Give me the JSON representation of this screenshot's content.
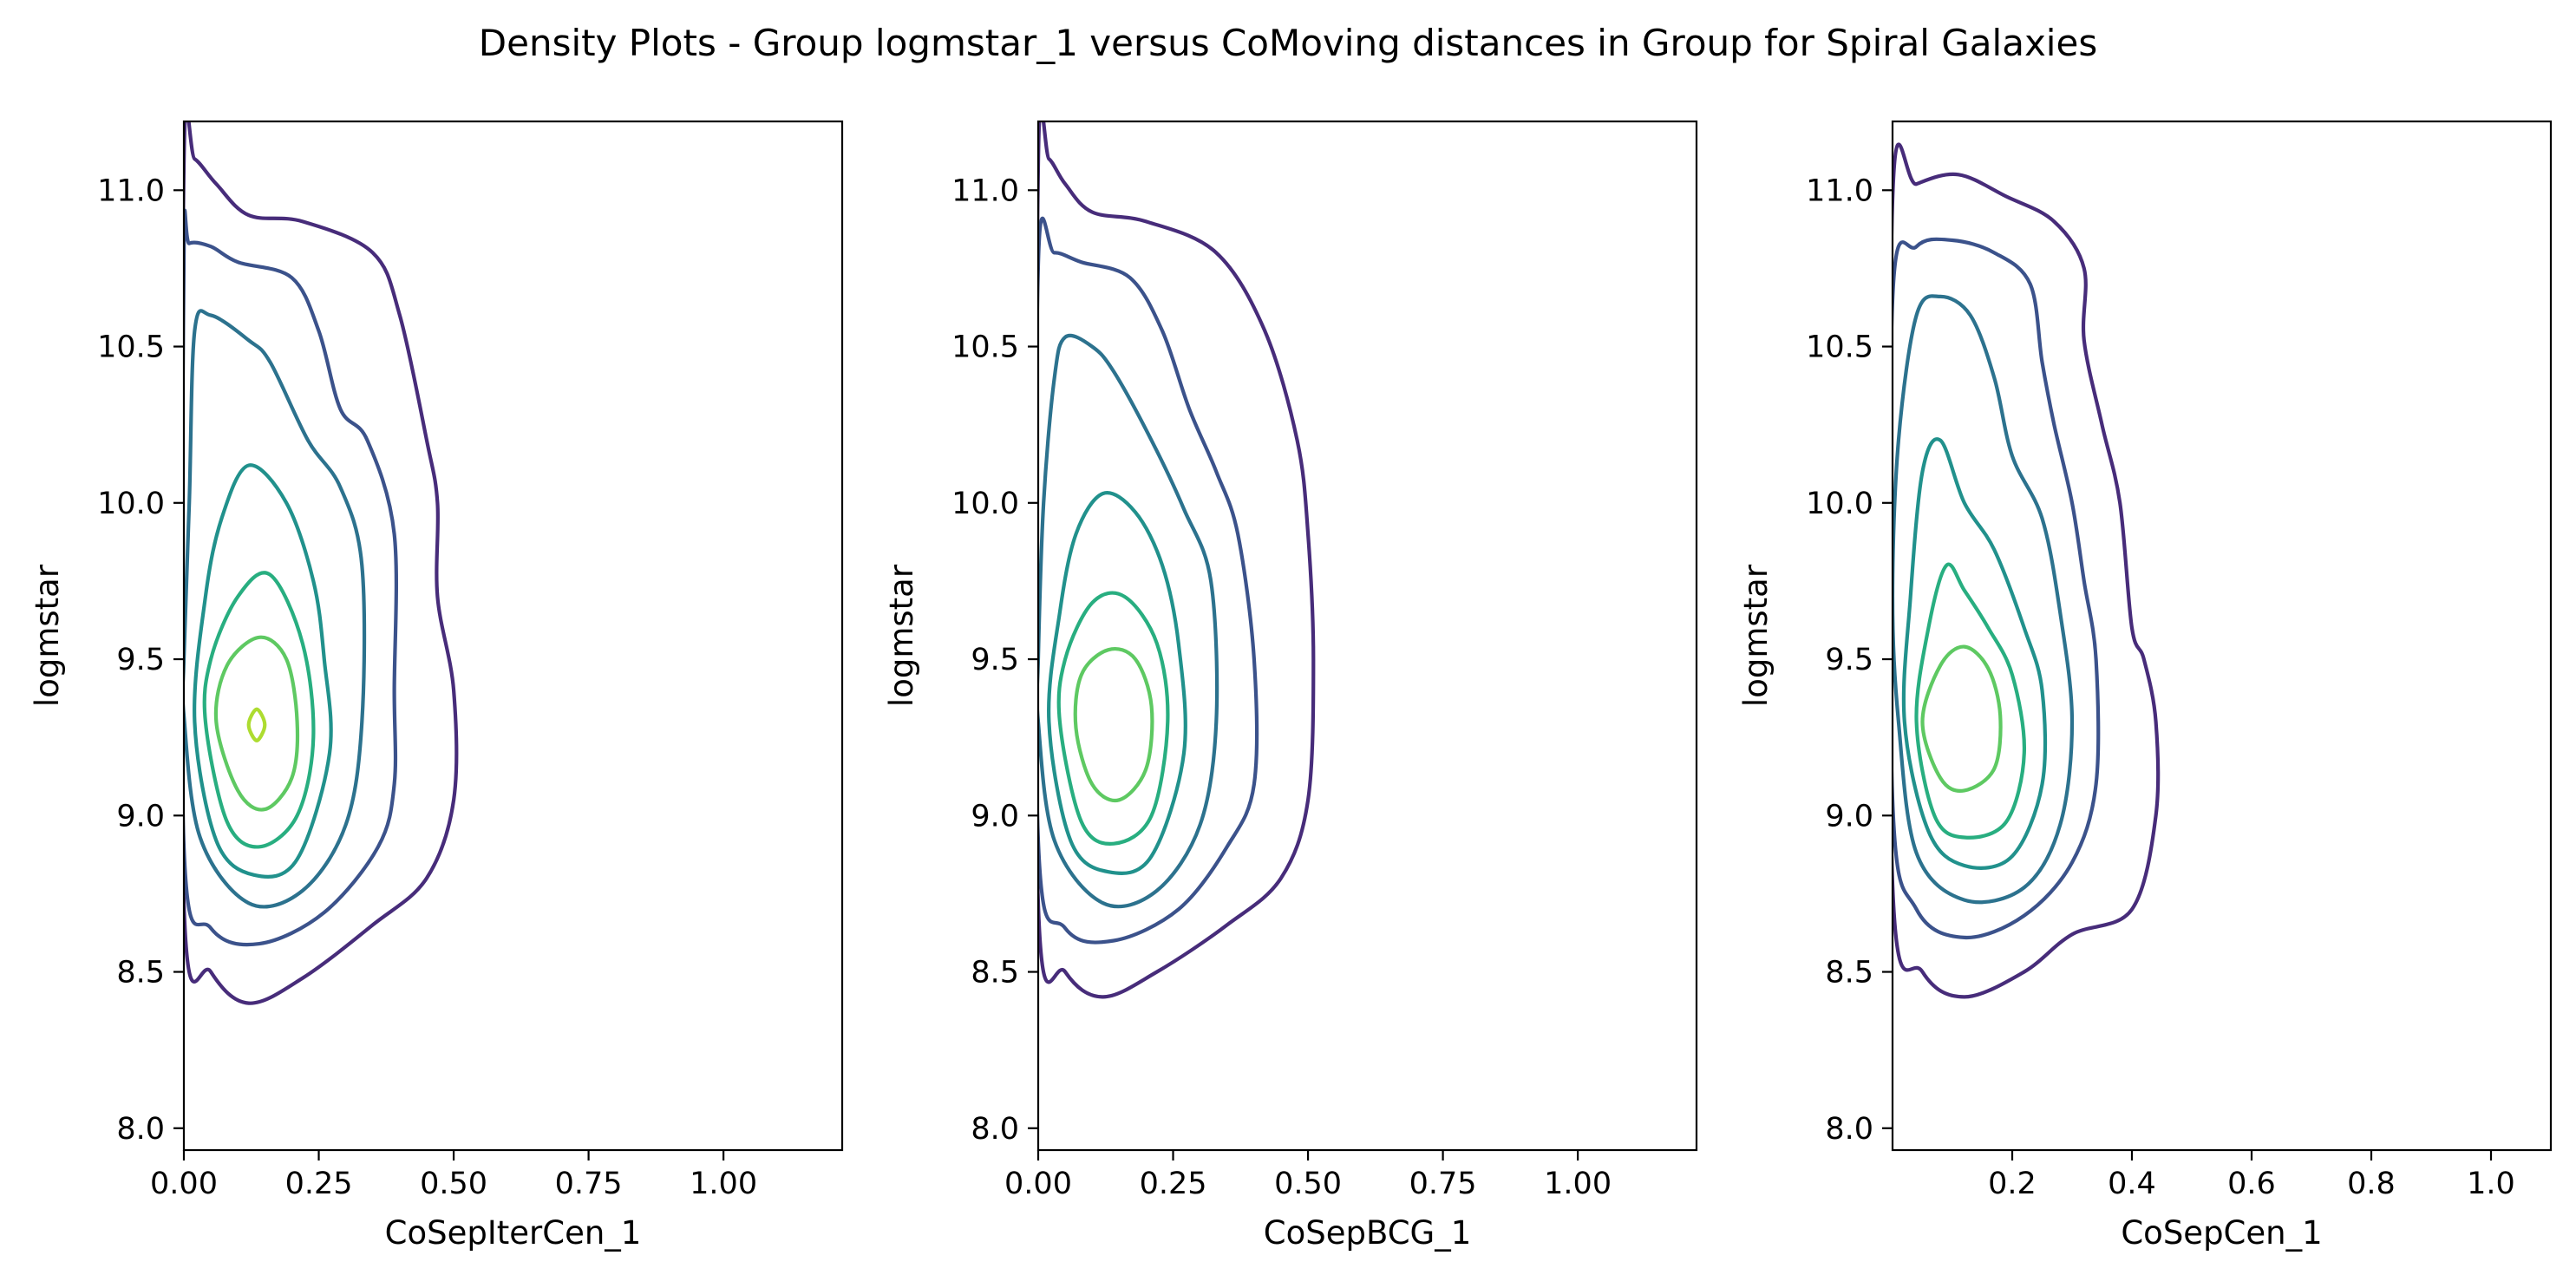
{
  "figure": {
    "title": "Density Plots - Group logmstar_1 versus CoMoving distances in Group for Spiral Galaxies"
  },
  "chart_data": [
    {
      "type": "contour",
      "xlabel": "CoSepIterCen_1",
      "ylabel": "logmstar",
      "xlim": [
        0.0,
        1.22
      ],
      "ylim": [
        7.93,
        11.22
      ],
      "xticks": [
        0.0,
        0.25,
        0.5,
        0.75,
        1.0
      ],
      "xtick_labels": [
        "0.00",
        "0.25",
        "0.50",
        "0.75",
        "1.00"
      ],
      "yticks": [
        8.0,
        8.5,
        9.0,
        9.5,
        10.0,
        10.5,
        11.0
      ],
      "ytick_labels": [
        "8.0",
        "8.5",
        "9.0",
        "9.5",
        "10.0",
        "10.5",
        "11.0"
      ],
      "grid": false,
      "levels": [
        {
          "color": "#472c7a",
          "points": [
            [
              0.0,
              8.72
            ],
            [
              0.05,
              8.5
            ],
            [
              0.12,
              8.4
            ],
            [
              0.22,
              8.48
            ],
            [
              0.35,
              8.65
            ],
            [
              0.45,
              8.8
            ],
            [
              0.5,
              9.05
            ],
            [
              0.5,
              9.4
            ],
            [
              0.47,
              9.7
            ],
            [
              0.47,
              10.0
            ],
            [
              0.45,
              10.2
            ],
            [
              0.4,
              10.6
            ],
            [
              0.35,
              10.8
            ],
            [
              0.22,
              10.9
            ],
            [
              0.12,
              10.92
            ],
            [
              0.06,
              11.02
            ],
            [
              0.02,
              11.1
            ],
            [
              0.0,
              11.08
            ]
          ]
        },
        {
          "color": "#3b528b",
          "points": [
            [
              0.0,
              8.9
            ],
            [
              0.05,
              8.64
            ],
            [
              0.14,
              8.59
            ],
            [
              0.26,
              8.69
            ],
            [
              0.36,
              8.9
            ],
            [
              0.39,
              9.1
            ],
            [
              0.39,
              9.4
            ],
            [
              0.39,
              9.9
            ],
            [
              0.34,
              10.2
            ],
            [
              0.29,
              10.3
            ],
            [
              0.25,
              10.55
            ],
            [
              0.2,
              10.72
            ],
            [
              0.1,
              10.77
            ],
            [
              0.05,
              10.82
            ],
            [
              0.01,
              10.83
            ],
            [
              0.0,
              10.78
            ]
          ]
        },
        {
          "color": "#2c728e",
          "points": [
            [
              0.0,
              9.32
            ],
            [
              0.03,
              8.93
            ],
            [
              0.12,
              8.72
            ],
            [
              0.22,
              8.76
            ],
            [
              0.3,
              8.97
            ],
            [
              0.33,
              9.3
            ],
            [
              0.33,
              9.8
            ],
            [
              0.29,
              10.05
            ],
            [
              0.23,
              10.2
            ],
            [
              0.16,
              10.45
            ],
            [
              0.12,
              10.52
            ],
            [
              0.05,
              10.6
            ],
            [
              0.02,
              10.55
            ],
            [
              0.01,
              10.0
            ],
            [
              0.0,
              9.5
            ]
          ]
        },
        {
          "color": "#21918c",
          "points": [
            [
              0.02,
              9.3
            ],
            [
              0.06,
              8.92
            ],
            [
              0.13,
              8.81
            ],
            [
              0.21,
              8.86
            ],
            [
              0.27,
              9.2
            ],
            [
              0.26,
              9.5
            ],
            [
              0.24,
              9.75
            ],
            [
              0.19,
              10.0
            ],
            [
              0.12,
              10.12
            ],
            [
              0.07,
              9.95
            ],
            [
              0.04,
              9.7
            ]
          ]
        },
        {
          "color": "#28ae80",
          "points": [
            [
              0.04,
              9.3
            ],
            [
              0.08,
              8.98
            ],
            [
              0.14,
              8.9
            ],
            [
              0.21,
              9.0
            ],
            [
              0.24,
              9.25
            ],
            [
              0.22,
              9.55
            ],
            [
              0.16,
              9.77
            ],
            [
              0.1,
              9.7
            ],
            [
              0.05,
              9.5
            ]
          ]
        },
        {
          "color": "#5ec962",
          "points": [
            [
              0.06,
              9.3
            ],
            [
              0.1,
              9.08
            ],
            [
              0.15,
              9.02
            ],
            [
              0.2,
              9.12
            ],
            [
              0.21,
              9.3
            ],
            [
              0.19,
              9.5
            ],
            [
              0.14,
              9.57
            ],
            [
              0.08,
              9.48
            ]
          ]
        },
        {
          "color": "#addc30",
          "points": [
            [
              0.12,
              9.29
            ],
            [
              0.135,
              9.24
            ],
            [
              0.15,
              9.29
            ],
            [
              0.135,
              9.34
            ]
          ]
        }
      ]
    },
    {
      "type": "contour",
      "xlabel": "CoSepBCG_1",
      "ylabel": "logmstar",
      "xlim": [
        0.0,
        1.22
      ],
      "ylim": [
        7.93,
        11.22
      ],
      "xticks": [
        0.0,
        0.25,
        0.5,
        0.75,
        1.0
      ],
      "xtick_labels": [
        "0.00",
        "0.25",
        "0.50",
        "0.75",
        "1.00"
      ],
      "yticks": [
        8.0,
        8.5,
        9.0,
        9.5,
        10.0,
        10.5,
        11.0
      ],
      "ytick_labels": [
        "8.0",
        "8.5",
        "9.0",
        "9.5",
        "10.0",
        "10.5",
        "11.0"
      ],
      "grid": false,
      "levels": [
        {
          "color": "#472c7a",
          "points": [
            [
              0.0,
              8.72
            ],
            [
              0.05,
              8.5
            ],
            [
              0.12,
              8.42
            ],
            [
              0.22,
              8.5
            ],
            [
              0.35,
              8.65
            ],
            [
              0.45,
              8.8
            ],
            [
              0.5,
              9.05
            ],
            [
              0.51,
              9.5
            ],
            [
              0.5,
              9.9
            ],
            [
              0.48,
              10.2
            ],
            [
              0.42,
              10.55
            ],
            [
              0.33,
              10.8
            ],
            [
              0.2,
              10.9
            ],
            [
              0.1,
              10.93
            ],
            [
              0.05,
              11.02
            ],
            [
              0.02,
              11.1
            ],
            [
              0.0,
              11.08
            ]
          ]
        },
        {
          "color": "#3b528b",
          "points": [
            [
              0.0,
              8.92
            ],
            [
              0.05,
              8.64
            ],
            [
              0.14,
              8.6
            ],
            [
              0.26,
              8.7
            ],
            [
              0.35,
              8.9
            ],
            [
              0.4,
              9.1
            ],
            [
              0.4,
              9.5
            ],
            [
              0.37,
              9.9
            ],
            [
              0.33,
              10.1
            ],
            [
              0.28,
              10.3
            ],
            [
              0.23,
              10.55
            ],
            [
              0.17,
              10.72
            ],
            [
              0.08,
              10.77
            ],
            [
              0.03,
              10.8
            ],
            [
              0.0,
              10.76
            ]
          ]
        },
        {
          "color": "#2c728e",
          "points": [
            [
              0.0,
              9.3
            ],
            [
              0.03,
              8.92
            ],
            [
              0.12,
              8.72
            ],
            [
              0.22,
              8.76
            ],
            [
              0.3,
              8.97
            ],
            [
              0.33,
              9.3
            ],
            [
              0.32,
              9.75
            ],
            [
              0.27,
              9.98
            ],
            [
              0.21,
              10.2
            ],
            [
              0.14,
              10.42
            ],
            [
              0.1,
              10.5
            ],
            [
              0.05,
              10.53
            ],
            [
              0.03,
              10.4
            ],
            [
              0.01,
              10.0
            ],
            [
              0.0,
              9.5
            ]
          ]
        },
        {
          "color": "#21918c",
          "points": [
            [
              0.02,
              9.3
            ],
            [
              0.06,
              8.92
            ],
            [
              0.13,
              8.82
            ],
            [
              0.21,
              8.87
            ],
            [
              0.27,
              9.2
            ],
            [
              0.26,
              9.55
            ],
            [
              0.23,
              9.8
            ],
            [
              0.18,
              9.97
            ],
            [
              0.12,
              10.03
            ],
            [
              0.07,
              9.9
            ],
            [
              0.04,
              9.65
            ]
          ]
        },
        {
          "color": "#28ae80",
          "points": [
            [
              0.04,
              9.3
            ],
            [
              0.08,
              8.98
            ],
            [
              0.14,
              8.91
            ],
            [
              0.21,
              9.0
            ],
            [
              0.24,
              9.3
            ],
            [
              0.22,
              9.55
            ],
            [
              0.16,
              9.7
            ],
            [
              0.1,
              9.68
            ],
            [
              0.05,
              9.5
            ]
          ]
        },
        {
          "color": "#5ec962",
          "points": [
            [
              0.07,
              9.28
            ],
            [
              0.1,
              9.1
            ],
            [
              0.15,
              9.05
            ],
            [
              0.2,
              9.15
            ],
            [
              0.21,
              9.35
            ],
            [
              0.18,
              9.5
            ],
            [
              0.13,
              9.53
            ],
            [
              0.08,
              9.45
            ]
          ]
        }
      ]
    },
    {
      "type": "contour",
      "xlabel": "CoSepCen_1",
      "ylabel": "logmstar",
      "xlim": [
        0.0,
        1.1
      ],
      "ylim": [
        7.93,
        11.22
      ],
      "xticks": [
        0.2,
        0.4,
        0.6,
        0.8,
        1.0
      ],
      "xtick_labels": [
        "0.2",
        "0.4",
        "0.6",
        "0.8",
        "1.0"
      ],
      "yticks": [
        8.0,
        8.5,
        9.0,
        9.5,
        10.0,
        10.5,
        11.0
      ],
      "ytick_labels": [
        "8.0",
        "8.5",
        "9.0",
        "9.5",
        "10.0",
        "10.5",
        "11.0"
      ],
      "grid": false,
      "levels": [
        {
          "color": "#472c7a",
          "points": [
            [
              0.0,
              8.78
            ],
            [
              0.05,
              8.5
            ],
            [
              0.12,
              8.42
            ],
            [
              0.22,
              8.5
            ],
            [
              0.3,
              8.62
            ],
            [
              0.4,
              8.7
            ],
            [
              0.44,
              9.0
            ],
            [
              0.44,
              9.3
            ],
            [
              0.42,
              9.5
            ],
            [
              0.4,
              9.6
            ],
            [
              0.38,
              10.0
            ],
            [
              0.35,
              10.25
            ],
            [
              0.32,
              10.52
            ],
            [
              0.32,
              10.75
            ],
            [
              0.27,
              10.9
            ],
            [
              0.19,
              10.98
            ],
            [
              0.11,
              11.05
            ],
            [
              0.04,
              11.02
            ],
            [
              0.0,
              10.97
            ]
          ]
        },
        {
          "color": "#3b528b",
          "points": [
            [
              0.0,
              9.05
            ],
            [
              0.04,
              8.7
            ],
            [
              0.12,
              8.61
            ],
            [
              0.22,
              8.68
            ],
            [
              0.3,
              8.85
            ],
            [
              0.34,
              9.1
            ],
            [
              0.34,
              9.5
            ],
            [
              0.32,
              9.75
            ],
            [
              0.3,
              10.0
            ],
            [
              0.27,
              10.25
            ],
            [
              0.25,
              10.45
            ],
            [
              0.23,
              10.7
            ],
            [
              0.17,
              10.8
            ],
            [
              0.1,
              10.84
            ],
            [
              0.04,
              10.82
            ],
            [
              0.0,
              10.65
            ]
          ]
        },
        {
          "color": "#2c728e",
          "points": [
            [
              0.01,
              9.3
            ],
            [
              0.04,
              8.88
            ],
            [
              0.12,
              8.73
            ],
            [
              0.22,
              8.77
            ],
            [
              0.28,
              8.97
            ],
            [
              0.3,
              9.3
            ],
            [
              0.28,
              9.65
            ],
            [
              0.25,
              9.95
            ],
            [
              0.2,
              10.15
            ],
            [
              0.17,
              10.4
            ],
            [
              0.13,
              10.6
            ],
            [
              0.08,
              10.66
            ],
            [
              0.04,
              10.6
            ],
            [
              0.01,
              10.2
            ],
            [
              0.0,
              9.7
            ]
          ]
        },
        {
          "color": "#21918c",
          "points": [
            [
              0.02,
              9.3
            ],
            [
              0.06,
              8.95
            ],
            [
              0.12,
              8.84
            ],
            [
              0.2,
              8.87
            ],
            [
              0.25,
              9.1
            ],
            [
              0.25,
              9.4
            ],
            [
              0.22,
              9.6
            ],
            [
              0.17,
              9.85
            ],
            [
              0.12,
              10.0
            ],
            [
              0.08,
              10.2
            ],
            [
              0.05,
              10.1
            ],
            [
              0.03,
              9.7
            ]
          ]
        },
        {
          "color": "#28ae80",
          "points": [
            [
              0.04,
              9.3
            ],
            [
              0.07,
              9.0
            ],
            [
              0.12,
              8.93
            ],
            [
              0.19,
              8.98
            ],
            [
              0.22,
              9.2
            ],
            [
              0.2,
              9.45
            ],
            [
              0.16,
              9.6
            ],
            [
              0.12,
              9.72
            ],
            [
              0.09,
              9.8
            ],
            [
              0.06,
              9.6
            ]
          ]
        },
        {
          "color": "#5ec962",
          "points": [
            [
              0.05,
              9.3
            ],
            [
              0.08,
              9.12
            ],
            [
              0.12,
              9.08
            ],
            [
              0.17,
              9.15
            ],
            [
              0.18,
              9.32
            ],
            [
              0.16,
              9.47
            ],
            [
              0.12,
              9.54
            ],
            [
              0.08,
              9.48
            ]
          ]
        }
      ]
    }
  ]
}
